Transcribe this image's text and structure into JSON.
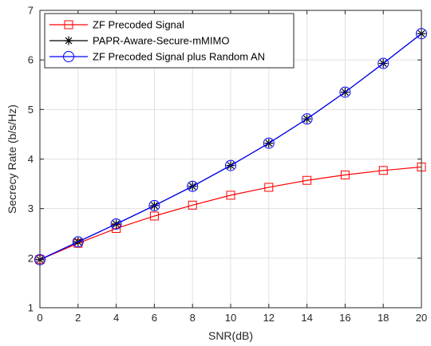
{
  "chart_data": {
    "type": "line",
    "title": "",
    "xlabel": "SNR(dB)",
    "ylabel": "Secrecy Rate (b/s/Hz)",
    "xlim": [
      0,
      20
    ],
    "ylim": [
      1,
      7
    ],
    "xticks": [
      0,
      2,
      4,
      6,
      8,
      10,
      12,
      14,
      16,
      18,
      20
    ],
    "yticks": [
      1,
      2,
      3,
      4,
      5,
      6,
      7
    ],
    "grid": true,
    "legend_position": "top-left",
    "x": [
      0,
      2,
      4,
      6,
      8,
      10,
      12,
      14,
      16,
      18,
      20
    ],
    "series": [
      {
        "name": "ZF Precoded Signal",
        "color": "#ff0000",
        "marker": "square",
        "values": [
          1.97,
          2.3,
          2.6,
          2.85,
          3.07,
          3.27,
          3.43,
          3.57,
          3.68,
          3.77,
          3.84
        ]
      },
      {
        "name": "PAPR-Aware-Secure-mMIMO",
        "color": "#000000",
        "marker": "asterisk",
        "values": [
          1.97,
          2.33,
          2.69,
          3.06,
          3.45,
          3.87,
          4.32,
          4.81,
          5.35,
          5.93,
          6.53
        ]
      },
      {
        "name": "ZF Precoded Signal plus Random AN",
        "color": "#0000ff",
        "marker": "circle",
        "values": [
          1.97,
          2.33,
          2.69,
          3.06,
          3.45,
          3.87,
          4.32,
          4.81,
          5.35,
          5.93,
          6.53
        ]
      }
    ]
  }
}
